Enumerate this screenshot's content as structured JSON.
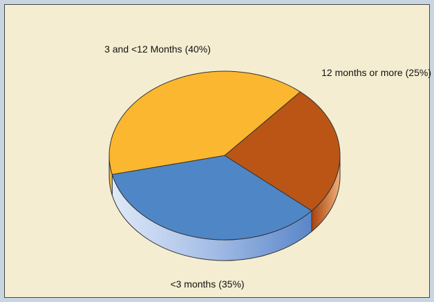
{
  "chart_data": {
    "type": "pie",
    "categories": [
      "12 months or more",
      "<3 months",
      "3 and <12 Months"
    ],
    "values": [
      25,
      35,
      40
    ],
    "value_labels": [
      "(25%)",
      "(35%)",
      "(40%)"
    ],
    "colors": [
      "#bb5516",
      "#4f86c6",
      "#fbb72f"
    ]
  }
}
